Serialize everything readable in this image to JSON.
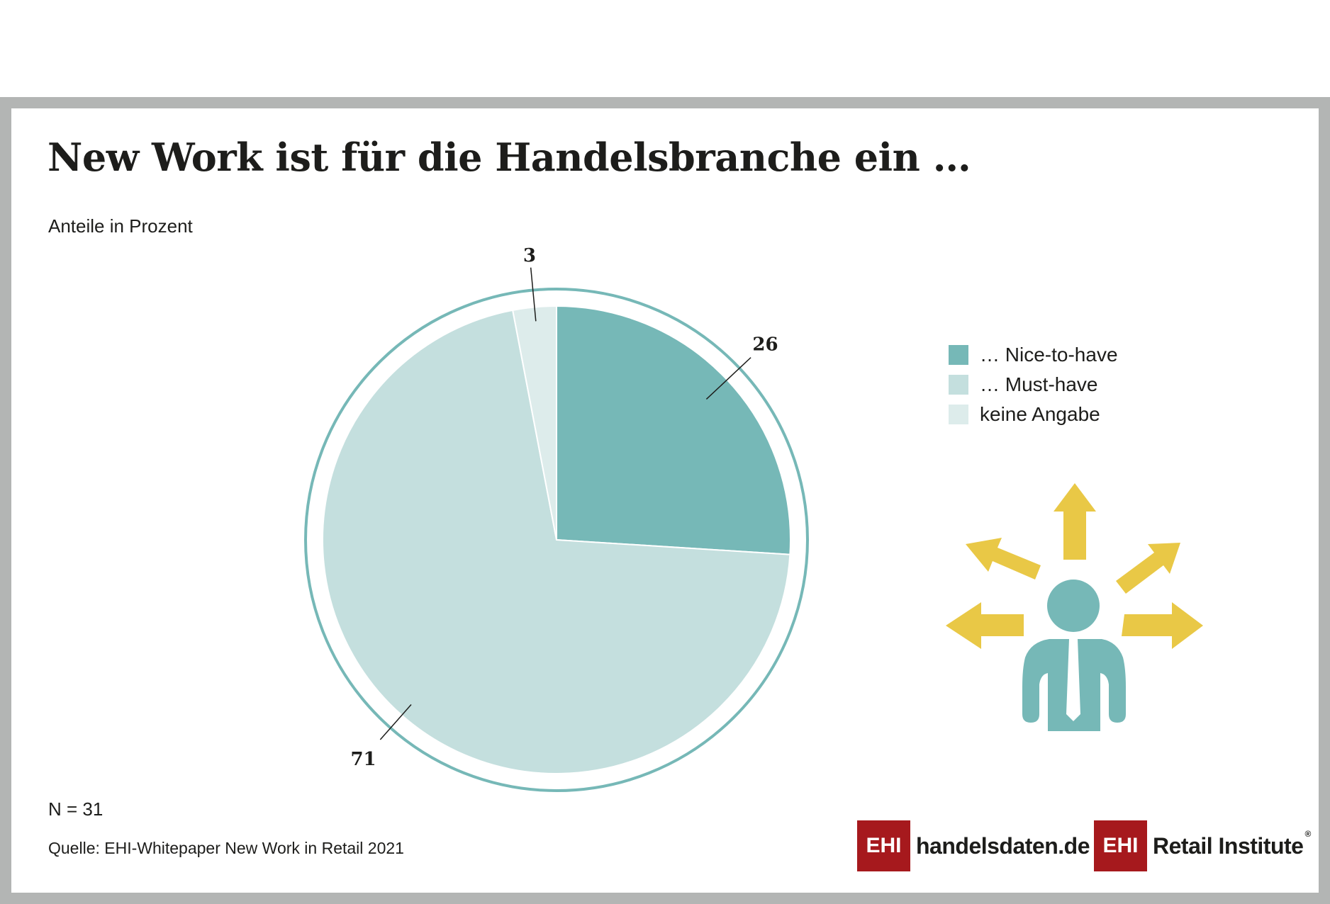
{
  "title": "New Work ist für die Handelsbranche ein …",
  "subtitle": "Anteile in Prozent",
  "chart_data": {
    "type": "pie",
    "title": "New Work ist für die Handelsbranche ein …",
    "subtitle": "Anteile in Prozent",
    "categories": [
      "… Nice-to-have",
      "… Must-have",
      "keine Angabe"
    ],
    "values": [
      26,
      71,
      3
    ],
    "data_labels": [
      "26",
      "71",
      "3"
    ],
    "colors": [
      "#76b8b7",
      "#c4dfde",
      "#ddeceb"
    ],
    "outline_color": "#76b8b7",
    "start_angle": "12 o'clock, clockwise",
    "legend_position": "right"
  },
  "legend": [
    {
      "label": "… Nice-to-have",
      "color": "#76b8b7"
    },
    {
      "label": "… Must-have",
      "color": "#c4dfde"
    },
    {
      "label": "keine Angabe",
      "color": "#ddeceb"
    }
  ],
  "footer": {
    "n_note": "N = 31",
    "source": "Quelle: EHI-Whitepaper New Work in Retail 2021"
  },
  "logos": {
    "logo1_box": "EHI",
    "logo1_text": "handelsdaten.de",
    "logo2_box": "EHI",
    "logo2_text": "Retail Institute",
    "logo2_mark": "®"
  },
  "illustration": {
    "icon": "person-with-arrows-icon",
    "person_color": "#76b8b7",
    "arrow_color": "#e9c846"
  }
}
